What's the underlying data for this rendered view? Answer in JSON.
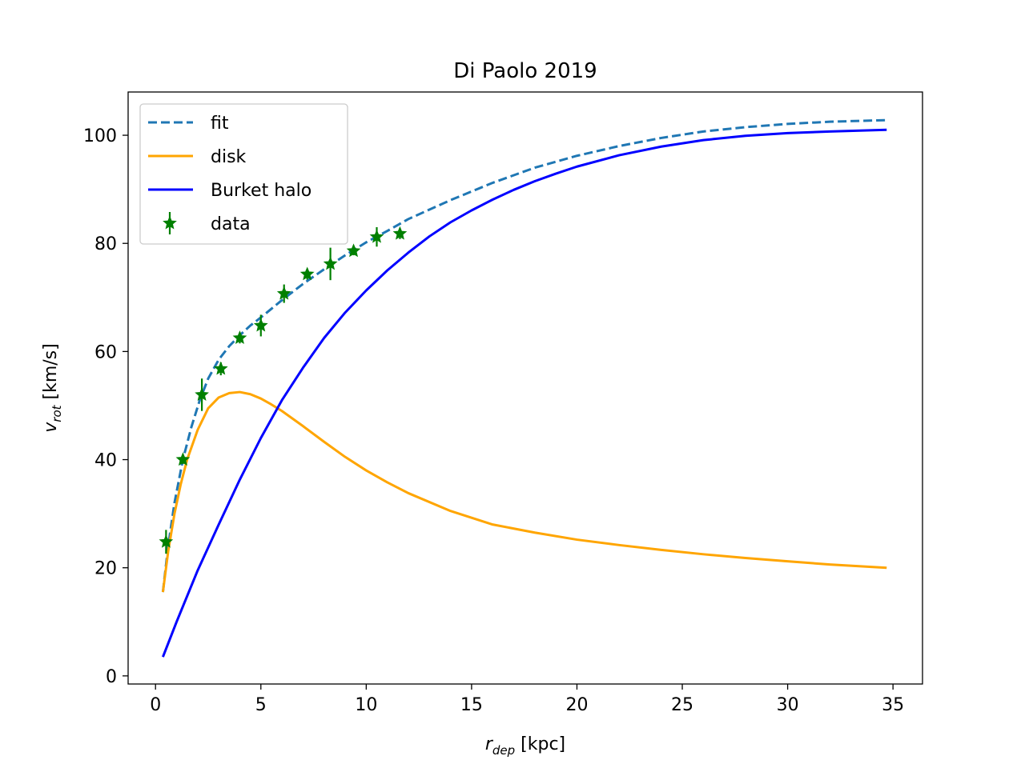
{
  "chart_data": {
    "type": "line",
    "title": "Di Paolo 2019",
    "xlabel": {
      "symbol": "r",
      "subscript": "dep",
      "unit": " [kpc]"
    },
    "ylabel": {
      "symbol": "v",
      "subscript": "rot",
      "unit": " [km/s]"
    },
    "xlim": [
      -1.3,
      36.4
    ],
    "ylim": [
      -1.5,
      108
    ],
    "xticks": [
      0,
      5,
      10,
      15,
      20,
      25,
      30,
      35
    ],
    "yticks": [
      0,
      20,
      40,
      60,
      80,
      100
    ],
    "grid": false,
    "legend_position": "upper-left",
    "series": [
      {
        "name": "fit",
        "style": "dashed",
        "color": "#1f77b4",
        "x": [
          0.35,
          0.6,
          0.9,
          1.3,
          1.7,
          2.1,
          2.5,
          3.0,
          3.5,
          4.0,
          4.5,
          5.0,
          6.0,
          7.0,
          8.0,
          9.0,
          10.0,
          11.0,
          12.0,
          14.0,
          16.0,
          18.0,
          20.0,
          22.0,
          24.0,
          26.0,
          28.0,
          30.0,
          32.0,
          34.7
        ],
        "y": [
          15.5,
          24,
          32,
          40,
          46,
          51,
          55,
          58.5,
          61,
          63,
          64.8,
          66.3,
          69.5,
          72.5,
          75.2,
          77.8,
          80.2,
          82.3,
          84.5,
          88,
          91.2,
          94,
          96.2,
          98,
          99.5,
          100.7,
          101.5,
          102.1,
          102.5,
          102.8
        ]
      },
      {
        "name": "disk",
        "style": "solid",
        "color": "#ffa500",
        "x": [
          0.35,
          0.6,
          0.9,
          1.2,
          1.5,
          2.0,
          2.5,
          3.0,
          3.5,
          4.0,
          4.5,
          5.0,
          5.5,
          6.0,
          7.0,
          8.0,
          9.0,
          10.0,
          11.0,
          12.0,
          14.0,
          16.0,
          18.0,
          20.0,
          22.0,
          24.0,
          26.0,
          28.0,
          30.0,
          32.0,
          34.7
        ],
        "y": [
          15.5,
          23,
          30,
          35.5,
          40,
          45.5,
          49.5,
          51.5,
          52.3,
          52.5,
          52.1,
          51.3,
          50.2,
          49,
          46.2,
          43.3,
          40.5,
          38,
          35.8,
          33.8,
          30.5,
          28,
          26.5,
          25.2,
          24.2,
          23.3,
          22.5,
          21.8,
          21.2,
          20.6,
          20
        ]
      },
      {
        "name": "Burket halo",
        "style": "solid",
        "color": "#0000ff",
        "x": [
          0.35,
          1,
          2,
          3,
          4,
          5,
          6,
          7,
          8,
          9,
          10,
          11,
          12,
          13,
          14,
          15,
          16,
          17,
          18,
          19,
          20,
          22,
          24,
          26,
          28,
          30,
          32,
          34.7
        ],
        "y": [
          3.5,
          10,
          19.5,
          28,
          36.3,
          44,
          51,
          57,
          62.5,
          67.2,
          71.3,
          75,
          78.3,
          81.3,
          83.9,
          86.1,
          88.1,
          89.9,
          91.5,
          92.9,
          94.2,
          96.3,
          97.9,
          99.1,
          99.9,
          100.4,
          100.7,
          101
        ]
      },
      {
        "name": "data",
        "style": "markers",
        "color": "#008000",
        "x": [
          0.5,
          1.3,
          2.2,
          3.1,
          4.0,
          5.0,
          6.1,
          7.2,
          8.3,
          9.4,
          10.5,
          11.6
        ],
        "y": [
          24.8,
          40,
          52,
          56.8,
          62.5,
          64.8,
          70.7,
          74.3,
          76.2,
          78.6,
          81.2,
          81.8
        ],
        "yerr": [
          2.2,
          0.8,
          3,
          1.2,
          1,
          2,
          1.7,
          1,
          3,
          0.8,
          1.8,
          1
        ]
      }
    ]
  }
}
